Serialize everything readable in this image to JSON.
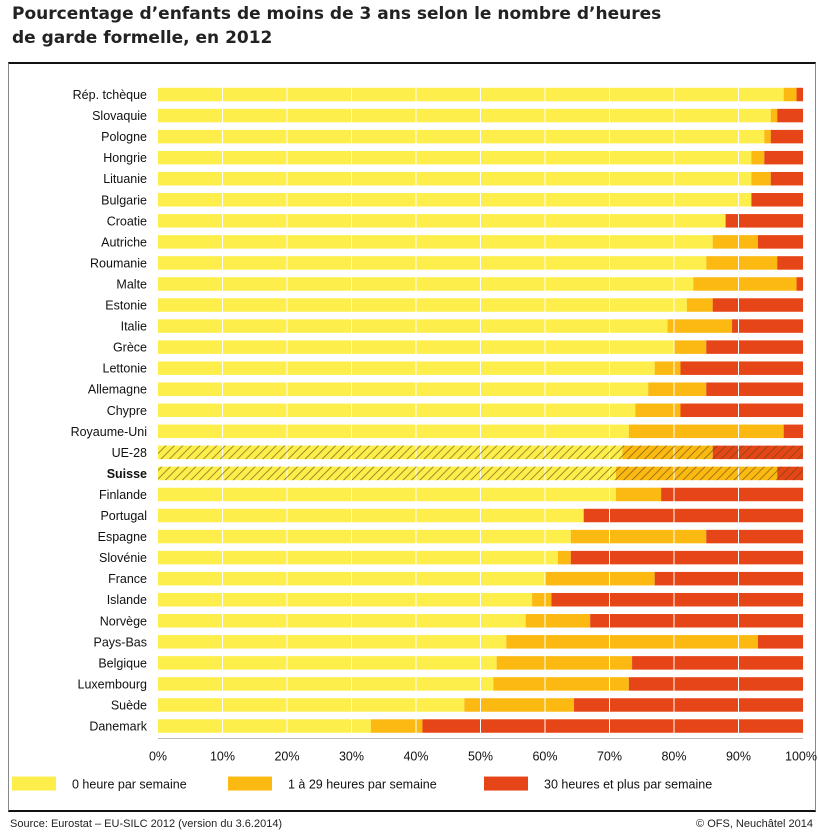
{
  "title_line1": "Pourcentage d’enfants de moins de 3 ans selon le nombre d’heures",
  "title_line2": "de garde formelle, en 2012",
  "source": "Source: Eurostat – EU-SILC 2012 (version du 3.6.2014)",
  "credit": "© OFS, Neuchâtel 2014",
  "colors": {
    "s0": "#FDEE4B",
    "s1": "#FBB912",
    "s2": "#E64517",
    "grid": "#ffffff",
    "hatch": "#5a4a10"
  },
  "chart_data": {
    "type": "bar",
    "orientation": "horizontal",
    "stacked": true,
    "categories": [
      "Rép. tchèque",
      "Slovaquie",
      "Pologne",
      "Hongrie",
      "Lituanie",
      "Bulgarie",
      "Croatie",
      "Autriche",
      "Roumanie",
      "Malte",
      "Estonie",
      "Italie",
      "Grèce",
      "Lettonie",
      "Allemagne",
      "Chypre",
      "Royaume-Uni",
      "UE-28",
      "Suisse",
      "Finlande",
      "Portugal",
      "Espagne",
      "Slovénie",
      "France",
      "Islande",
      "Norvège",
      "Pays-Bas",
      "Belgique",
      "Luxembourg",
      "Suède",
      "Danemark"
    ],
    "highlighted": [
      "UE-28",
      "Suisse"
    ],
    "bold_categories": [
      "Suisse"
    ],
    "series": [
      {
        "name": "0 heure par semaine",
        "color": "#FDEE4B",
        "values": [
          97,
          95,
          94,
          92,
          92,
          92,
          88,
          86,
          85,
          83,
          82,
          79,
          80,
          77,
          76,
          74,
          73,
          72,
          71,
          71,
          66,
          64,
          62,
          60,
          58,
          57,
          54,
          52.5,
          52,
          47.5,
          33
        ]
      },
      {
        "name": "1 à 29 heures par semaine",
        "color": "#FBB912",
        "values": [
          2,
          1,
          1,
          2,
          3,
          0,
          0,
          7,
          11,
          16,
          4,
          10,
          5,
          4,
          9,
          7,
          24,
          14,
          25,
          7,
          0,
          21,
          2,
          17,
          3,
          10,
          39,
          21,
          21,
          17,
          8
        ]
      },
      {
        "name": "30 heures et plus par semaine",
        "color": "#E64517",
        "values": [
          1,
          4,
          5,
          6,
          5,
          8,
          12,
          7,
          4,
          1,
          14,
          11,
          15,
          19,
          15,
          19,
          3,
          14,
          4,
          22,
          34,
          15,
          36,
          23,
          39,
          33,
          7,
          26.5,
          27,
          35.5,
          59
        ]
      }
    ],
    "xlim": [
      0,
      100
    ],
    "xticks": [
      "0%",
      "10%",
      "20%",
      "30%",
      "40%",
      "50%",
      "60%",
      "70%",
      "80%",
      "90%",
      "100%"
    ],
    "grid": true,
    "legend_position": "bottom"
  }
}
